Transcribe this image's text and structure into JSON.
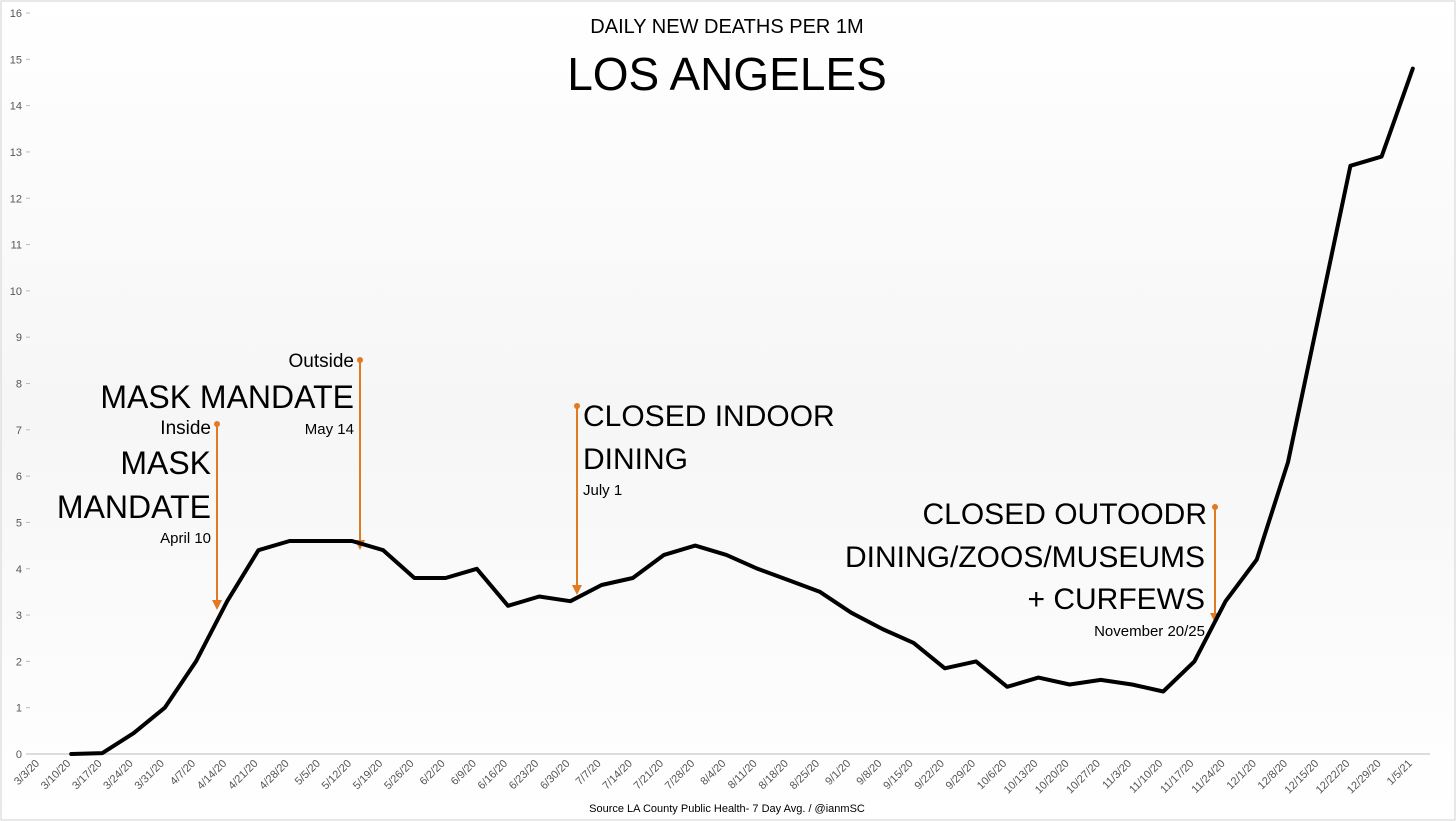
{
  "chart_data": {
    "type": "line",
    "subtitle": "DAILY NEW DEATHS PER 1M",
    "title": "LOS ANGELES",
    "source": "Source LA County Public Health- 7 Day Avg. / @ianmSC",
    "categories": [
      "3/3/20",
      "3/10/20",
      "3/17/20",
      "3/24/20",
      "3/31/20",
      "4/7/20",
      "4/14/20",
      "4/21/20",
      "4/28/20",
      "5/5/20",
      "5/12/20",
      "5/19/20",
      "5/26/20",
      "6/2/20",
      "6/9/20",
      "6/16/20",
      "6/23/20",
      "6/30/20",
      "7/7/20",
      "7/14/20",
      "7/21/20",
      "7/28/20",
      "8/4/20",
      "8/11/20",
      "8/18/20",
      "8/25/20",
      "9/1/20",
      "9/8/20",
      "9/15/20",
      "9/22/20",
      "9/29/20",
      "10/6/20",
      "10/13/20",
      "10/20/20",
      "10/27/20",
      "11/3/20",
      "11/10/20",
      "11/17/20",
      "11/24/20",
      "12/1/20",
      "12/8/20",
      "12/15/20",
      "12/22/20",
      "12/29/20",
      "1/5/21"
    ],
    "series": [
      {
        "name": "7 Day Avg.",
        "color": "#000000",
        "values": [
          null,
          0,
          0.02,
          0.45,
          1.0,
          2.0,
          3.3,
          4.4,
          4.6,
          4.6,
          4.6,
          4.4,
          3.8,
          3.8,
          4.0,
          3.2,
          3.4,
          3.3,
          3.65,
          3.8,
          4.3,
          4.5,
          4.3,
          4.0,
          3.75,
          3.5,
          3.05,
          2.7,
          2.4,
          1.85,
          2.0,
          1.45,
          1.65,
          1.5,
          1.6,
          1.5,
          1.35,
          2.0,
          3.3,
          4.2,
          6.3,
          9.5,
          12.7,
          12.9,
          14.8
        ]
      }
    ],
    "ylim": [
      0,
      16
    ],
    "yticks": [
      0,
      1,
      2,
      3,
      4,
      5,
      6,
      7,
      8,
      9,
      10,
      11,
      12,
      13,
      14,
      15,
      16
    ],
    "grid": false,
    "annotations": {
      "outside": "Outside",
      "mask_mandate_outside": "MASK MANDATE",
      "may": "May 14",
      "inside": "Inside",
      "mask": "MASK",
      "mandate": "MANDATE",
      "april": "April 10",
      "indoor1": "CLOSED INDOOR",
      "indoor2": "DINING",
      "july": "July 1",
      "outdoor1": "CLOSED OUTOODR",
      "outdoor2": "DINING/ZOOS/MUSEUMS",
      "outdoor3": "+ CURFEWS",
      "november": "November 20/25"
    }
  }
}
